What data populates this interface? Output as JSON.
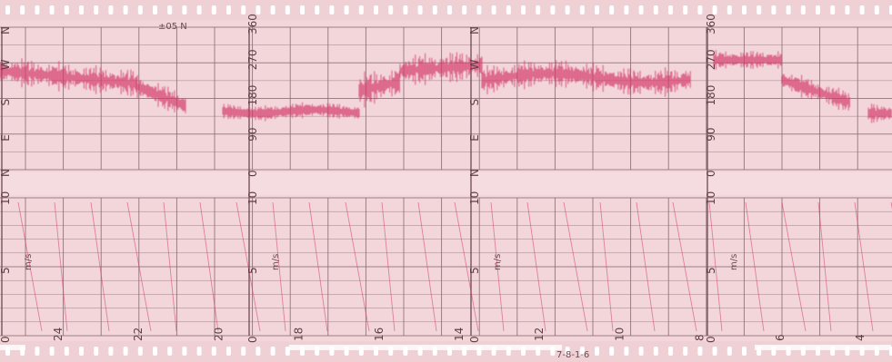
{
  "chart": {
    "top_labels": {
      "compass_left": [
        "N",
        "W",
        "S",
        "E",
        "N"
      ],
      "degrees_a": [
        "360",
        "270",
        "180",
        "90",
        "0"
      ],
      "compass_right": [
        "N",
        "W",
        "S",
        "E",
        "N"
      ],
      "degrees_b": [
        "360",
        "270",
        "180",
        "90",
        "0"
      ]
    },
    "lower_labels": [
      "10",
      "5",
      "0"
    ],
    "unit": "m/s",
    "header_mark": "±05 N",
    "time_labels": [
      "24",
      "22",
      "20",
      "18",
      "16",
      "14",
      "12",
      "10",
      "8",
      "6",
      "4"
    ],
    "footer_mark": "7-8-1-6"
  },
  "colors": {
    "paper": "#f2d6da",
    "grid": "#8a6a70",
    "trace": "#d4386a",
    "frame": "#ffffff"
  }
}
